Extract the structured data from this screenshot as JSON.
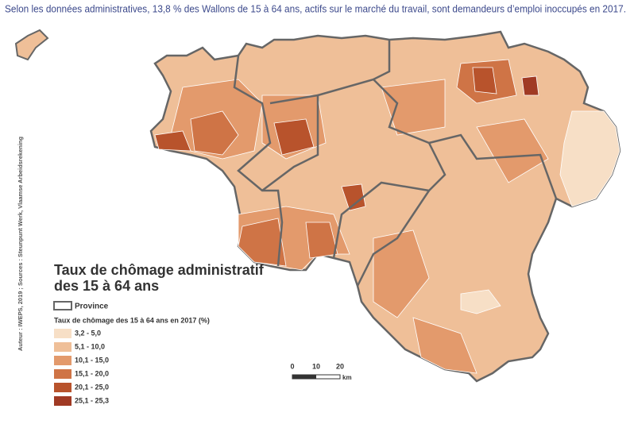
{
  "caption": "Selon les données administratives, 13,8 % des Wallons de 15 à 64 ans, actifs sur le marché du travail, sont demandeurs d’emploi inoccupés en 2017.",
  "credit": "Auteur : IWEPS, 2019 ; Sources : Steunpunt Werk, Vlaamse Arbeidsrekening",
  "legend": {
    "title_line1": "Taux de chômage administratif",
    "title_line2": "des 15 à 64 ans",
    "province": "Province",
    "subtitle": "Taux de chômage des 15 à 64 ans en 2017 (%)",
    "classes": [
      {
        "label": "3,2 - 5,0",
        "color": "#f7dfc6"
      },
      {
        "label": "5,1 - 10,0",
        "color": "#efbf98"
      },
      {
        "label": "10,1 - 15,0",
        "color": "#e39a6c"
      },
      {
        "label": "15,1 - 20,0",
        "color": "#cf7446"
      },
      {
        "label": "20,1 - 25,0",
        "color": "#b8532c"
      },
      {
        "label": "25,1 - 25,3",
        "color": "#a03a24"
      }
    ]
  },
  "scale": {
    "ticks": [
      "0",
      "10",
      "20"
    ],
    "unit": "km"
  }
}
